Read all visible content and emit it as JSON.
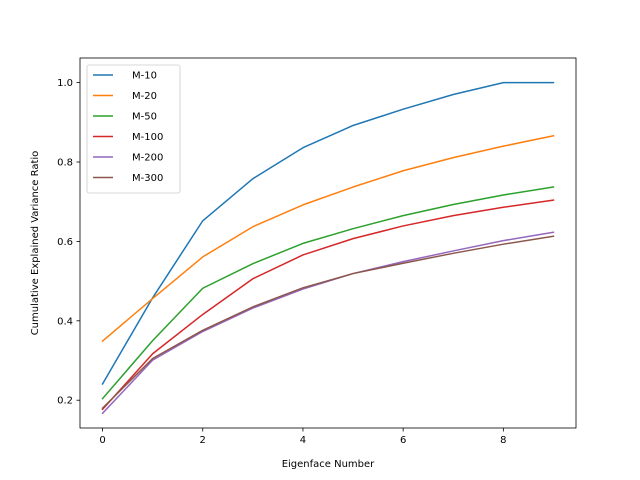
{
  "chart_data": {
    "type": "line",
    "xlabel": "Eigenface Number",
    "ylabel": "Cumulative Explained Variance Ratio",
    "xlim": [
      -0.45,
      9.45
    ],
    "ylim": [
      0.13,
      1.062
    ],
    "x_ticks": [
      0,
      2,
      4,
      6,
      8
    ],
    "y_ticks": [
      0.2,
      0.4,
      0.6,
      0.8,
      1.0
    ],
    "x_tick_labels": [
      "0",
      "2",
      "4",
      "6",
      "8"
    ],
    "y_tick_labels": [
      "0.2",
      "0.4",
      "0.6",
      "0.8",
      "1.0"
    ],
    "grid": false,
    "legend_position": "upper-left",
    "x": [
      0,
      1,
      2,
      3,
      4,
      5,
      6,
      7,
      8,
      9
    ],
    "series": [
      {
        "name": "M-10",
        "color": "#1f77b4",
        "values": [
          0.241,
          0.458,
          0.652,
          0.758,
          0.836,
          0.892,
          0.933,
          0.97,
          1.0,
          1.0
        ]
      },
      {
        "name": "M-20",
        "color": "#ff7f0e",
        "values": [
          0.349,
          0.456,
          0.561,
          0.637,
          0.692,
          0.737,
          0.778,
          0.811,
          0.84,
          0.866
        ]
      },
      {
        "name": "M-50",
        "color": "#2ca02c",
        "values": [
          0.204,
          0.35,
          0.482,
          0.544,
          0.595,
          0.632,
          0.665,
          0.693,
          0.717,
          0.737
        ]
      },
      {
        "name": "M-100",
        "color": "#d62728",
        "values": [
          0.177,
          0.317,
          0.416,
          0.506,
          0.566,
          0.607,
          0.639,
          0.665,
          0.686,
          0.704
        ]
      },
      {
        "name": "M-200",
        "color": "#9467bd",
        "values": [
          0.167,
          0.301,
          0.373,
          0.432,
          0.48,
          0.519,
          0.549,
          0.576,
          0.602,
          0.623
        ]
      },
      {
        "name": "M-300",
        "color": "#8c564b",
        "values": [
          0.18,
          0.305,
          0.376,
          0.435,
          0.483,
          0.519,
          0.545,
          0.57,
          0.593,
          0.613
        ]
      }
    ]
  }
}
